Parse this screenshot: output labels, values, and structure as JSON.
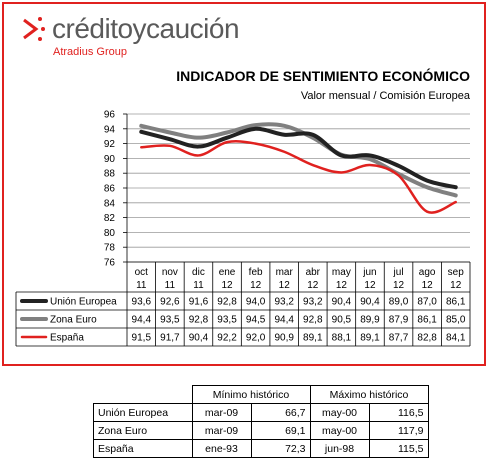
{
  "brand": {
    "name": "créditoycaución",
    "group": "Atradius Group"
  },
  "colors": {
    "frame": "#e0211f",
    "union_europea": "#222222",
    "zona_euro": "#808080",
    "espana": "#e0211f"
  },
  "chart_data": {
    "type": "line",
    "title": "INDICADOR DE SENTIMIENTO ECONÓMICO",
    "subtitle": "Valor mensual / Comisión Europea",
    "categories": [
      [
        "oct",
        "11"
      ],
      [
        "nov",
        "11"
      ],
      [
        "dic",
        "11"
      ],
      [
        "ene",
        "12"
      ],
      [
        "feb",
        "12"
      ],
      [
        "mar",
        "12"
      ],
      [
        "abr",
        "12"
      ],
      [
        "may",
        "12"
      ],
      [
        "jun",
        "12"
      ],
      [
        "jul",
        "12"
      ],
      [
        "ago",
        "12"
      ],
      [
        "sep",
        "12"
      ]
    ],
    "yticks": [
      "96",
      "94",
      "92",
      "90",
      "88",
      "86",
      "84",
      "82",
      "80",
      "78",
      "76"
    ],
    "ylim": [
      76,
      96
    ],
    "grid": true,
    "series": [
      {
        "name": "Unión Europea",
        "color": "#222222",
        "values": [
          93.6,
          92.6,
          91.6,
          92.8,
          94.0,
          93.2,
          93.2,
          90.4,
          90.4,
          89.0,
          87.0,
          86.1
        ],
        "labels": [
          "93,6",
          "92,6",
          "91,6",
          "92,8",
          "94,0",
          "93,2",
          "93,2",
          "90,4",
          "90,4",
          "89,0",
          "87,0",
          "86,1"
        ]
      },
      {
        "name": "Zona Euro",
        "color": "#808080",
        "values": [
          94.4,
          93.5,
          92.8,
          93.5,
          94.5,
          94.4,
          92.8,
          90.5,
          89.9,
          87.9,
          86.1,
          85.0
        ],
        "labels": [
          "94,4",
          "93,5",
          "92,8",
          "93,5",
          "94,5",
          "94,4",
          "92,8",
          "90,5",
          "89,9",
          "87,9",
          "86,1",
          "85,0"
        ]
      },
      {
        "name": "España",
        "color": "#e0211f",
        "values": [
          91.5,
          91.7,
          90.4,
          92.2,
          92.0,
          90.9,
          89.1,
          88.1,
          89.1,
          87.7,
          82.8,
          84.1
        ],
        "labels": [
          "91,5",
          "91,7",
          "90,4",
          "92,2",
          "92,0",
          "90,9",
          "89,1",
          "88,1",
          "89,1",
          "87,7",
          "82,8",
          "84,1"
        ]
      }
    ]
  },
  "historic": {
    "headers": [
      "Mínimo histórico",
      "Máximo histórico"
    ],
    "rows": [
      {
        "name": "Unión Europea",
        "min_date": "mar-09",
        "min_val": "66,7",
        "max_date": "may-00",
        "max_val": "116,5"
      },
      {
        "name": "Zona Euro",
        "min_date": "mar-09",
        "min_val": "69,1",
        "max_date": "may-00",
        "max_val": "117,9"
      },
      {
        "name": "España",
        "min_date": "ene-93",
        "min_val": "72,3",
        "max_date": "jun-98",
        "max_val": "115,5"
      }
    ]
  }
}
